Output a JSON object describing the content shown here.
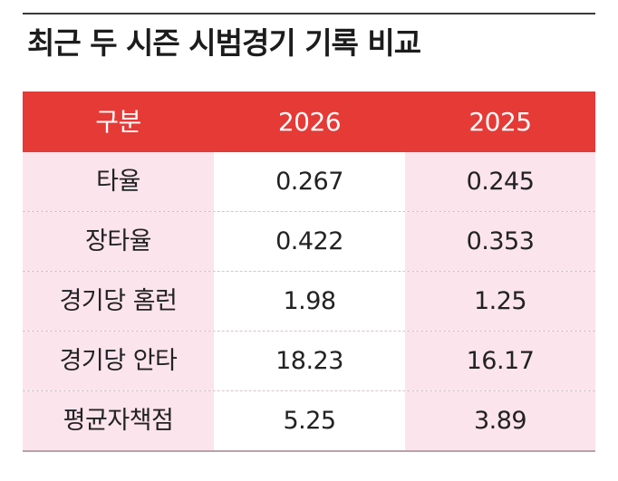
{
  "title": "최근 두 시즌 시범경기 기록 비교",
  "table": {
    "headers": [
      "구분",
      "2026",
      "2025"
    ],
    "rows": [
      {
        "label": "타율",
        "v2026": "0.267",
        "v2025": "0.245"
      },
      {
        "label": "장타율",
        "v2026": "0.422",
        "v2025": "0.353"
      },
      {
        "label": "경기당 홈런",
        "v2026": "1.98",
        "v2025": "1.25"
      },
      {
        "label": "경기당 안타",
        "v2026": "18.23",
        "v2025": "16.17"
      },
      {
        "label": "평균자책점",
        "v2026": "5.25",
        "v2025": "3.89"
      }
    ]
  },
  "colors": {
    "header_bg": "#e63a36",
    "label_bg": "#fce4ec",
    "rule": "#3a3a3a"
  }
}
